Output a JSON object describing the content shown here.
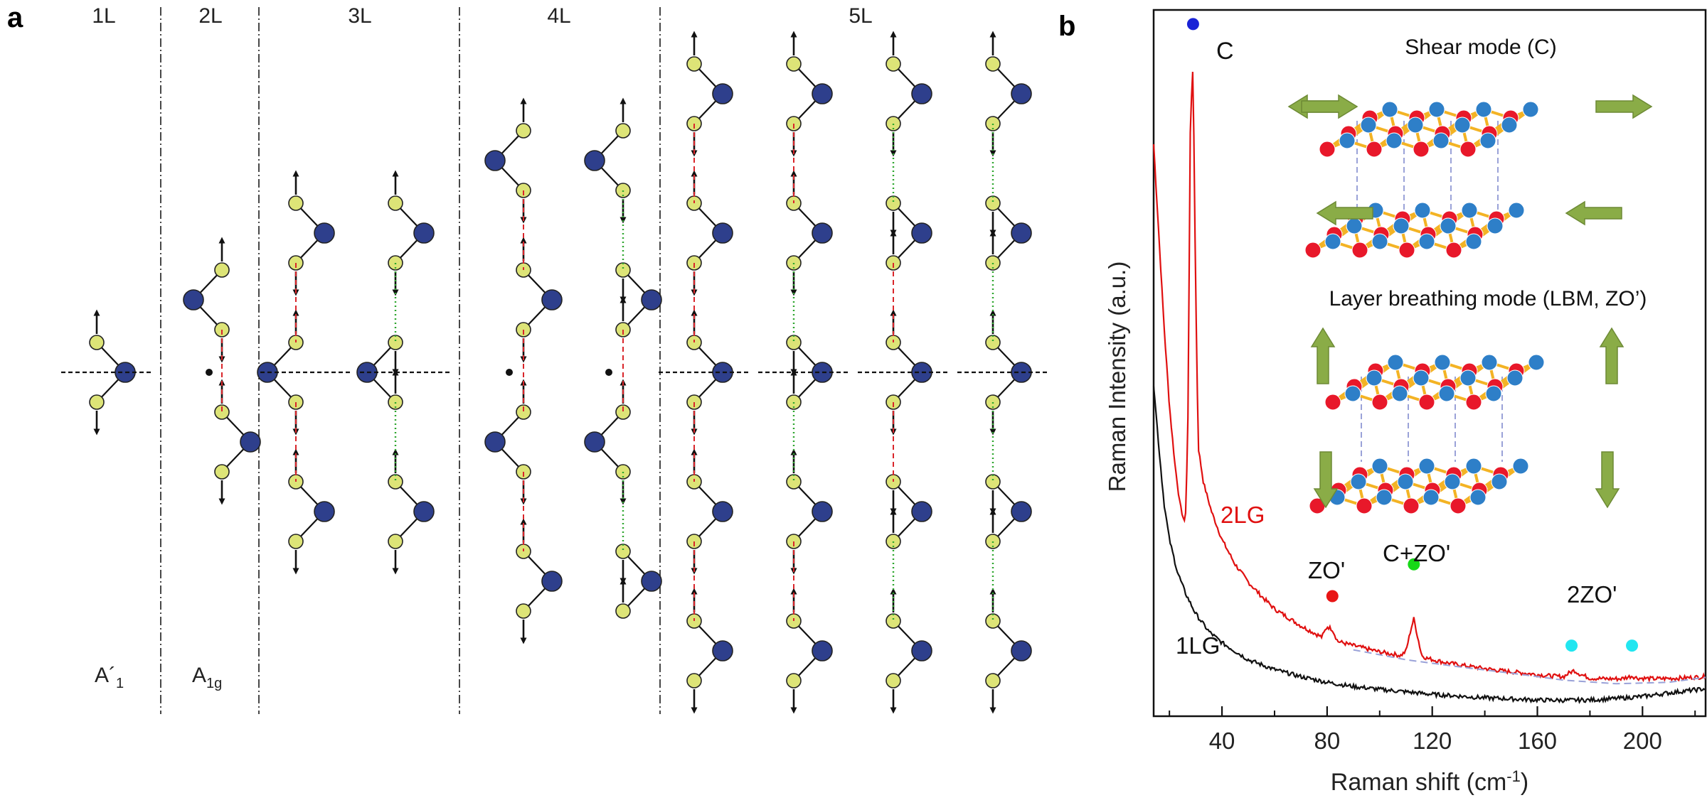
{
  "panel_a": {
    "label": "a",
    "layer_headers": [
      "1L",
      "2L",
      "3L",
      "4L",
      "5L"
    ],
    "symmetry_labels": [
      {
        "base": "A´",
        "sub": "1"
      },
      {
        "base": "A",
        "sub": "1g"
      }
    ],
    "atom_colors": {
      "light": "#dde477",
      "dark": "#2e3f8c"
    },
    "bond_colors": {
      "red_dashed": "#d9252a",
      "green_dotted": "#2ea62e"
    }
  },
  "panel_b": {
    "label": "b",
    "y_axis_label": "Raman Intensity (a.u.)",
    "x_axis_label": "Raman shift (cm",
    "x_axis_label_sup": "-1",
    "x_axis_label_end": ")",
    "legend_c": "C",
    "inset_shear_title": "Shear mode (C)",
    "inset_lbm_title": "Layer breathing mode (LBM, ZO’)",
    "curve_labels": {
      "lg2": "2LG",
      "lg1": "1LG"
    },
    "peak_labels": {
      "zo": "ZO'",
      "c_zo": "C+ZO'",
      "two_zo": "2ZO'"
    },
    "colors": {
      "curve_2lg": "#e01010",
      "curve_1lg": "#111111",
      "baseline": "#9aa2d8",
      "marker_c": "#1a23d6",
      "marker_zo": "#e81515",
      "marker_czo": "#17d817",
      "marker_2zo": "#22e6f0",
      "arrow_green": "#8aac47"
    },
    "chart_data": {
      "type": "line",
      "title": "",
      "xlabel": "Raman shift (cm-1)",
      "ylabel": "Raman Intensity (a.u.)",
      "xlim": [
        14,
        224
      ],
      "ylim": [
        0,
        100
      ],
      "xticks": [
        40,
        80,
        120,
        160,
        200
      ],
      "series": [
        {
          "name": "2LG",
          "x": [
            14,
            16,
            18,
            20,
            22,
            24,
            26,
            27,
            28,
            29,
            30,
            31,
            33,
            36,
            40,
            45,
            50,
            55,
            60,
            70,
            78,
            80,
            82,
            84,
            90,
            100,
            108,
            110,
            112,
            113,
            114,
            116,
            118,
            125,
            135,
            145,
            155,
            165,
            170,
            172,
            174,
            176,
            180,
            186,
            192,
            196,
            198,
            205,
            215,
            224
          ],
          "y": [
            81,
            68,
            55,
            44,
            36,
            30,
            27,
            40,
            85,
            92,
            60,
            38,
            33,
            29,
            25,
            21.5,
            19,
            17,
            15.2,
            12.8,
            11.2,
            12.7,
            12.3,
            10.6,
            10,
            9.1,
            8.6,
            9.2,
            12.5,
            13.8,
            12,
            8.6,
            8.2,
            7.6,
            7,
            6.5,
            6.1,
            5.7,
            5.6,
            6.1,
            6.5,
            6,
            5.4,
            5.3,
            5.3,
            5.7,
            5.4,
            5.3,
            5.4,
            5.6
          ]
        },
        {
          "name": "1LG",
          "x": [
            14,
            16,
            18,
            20,
            23,
            26,
            30,
            35,
            40,
            50,
            60,
            70,
            80,
            90,
            100,
            120,
            140,
            160,
            170,
            180,
            190,
            200,
            210,
            224
          ],
          "y": [
            47,
            38,
            30,
            25,
            20.5,
            17.5,
            14.5,
            12,
            10.4,
            8,
            6.6,
            5.6,
            4.8,
            4.2,
            3.8,
            3.1,
            2.6,
            2.3,
            2.25,
            2.3,
            2.5,
            2.8,
            3.3,
            3.9
          ]
        },
        {
          "name": "baseline",
          "x": [
            90,
            110,
            130,
            150,
            170,
            190,
            210,
            224
          ],
          "y": [
            9.4,
            8,
            7,
            6.1,
            5.1,
            4.6,
            4.8,
            5.5
          ]
        }
      ],
      "markers": [
        {
          "label": "C",
          "x": 29,
          "y": 98,
          "color": "#1a23d6"
        },
        {
          "label": "ZO'",
          "x": 82,
          "y": 17,
          "color": "#e81515"
        },
        {
          "label": "C+ZO'",
          "x": 113,
          "y": 21.5,
          "color": "#17d817"
        },
        {
          "label": "2ZO'",
          "x": 173,
          "y": 10,
          "color": "#22e6f0"
        },
        {
          "label": "2ZO'",
          "x": 196,
          "y": 10,
          "color": "#22e6f0"
        }
      ]
    }
  }
}
